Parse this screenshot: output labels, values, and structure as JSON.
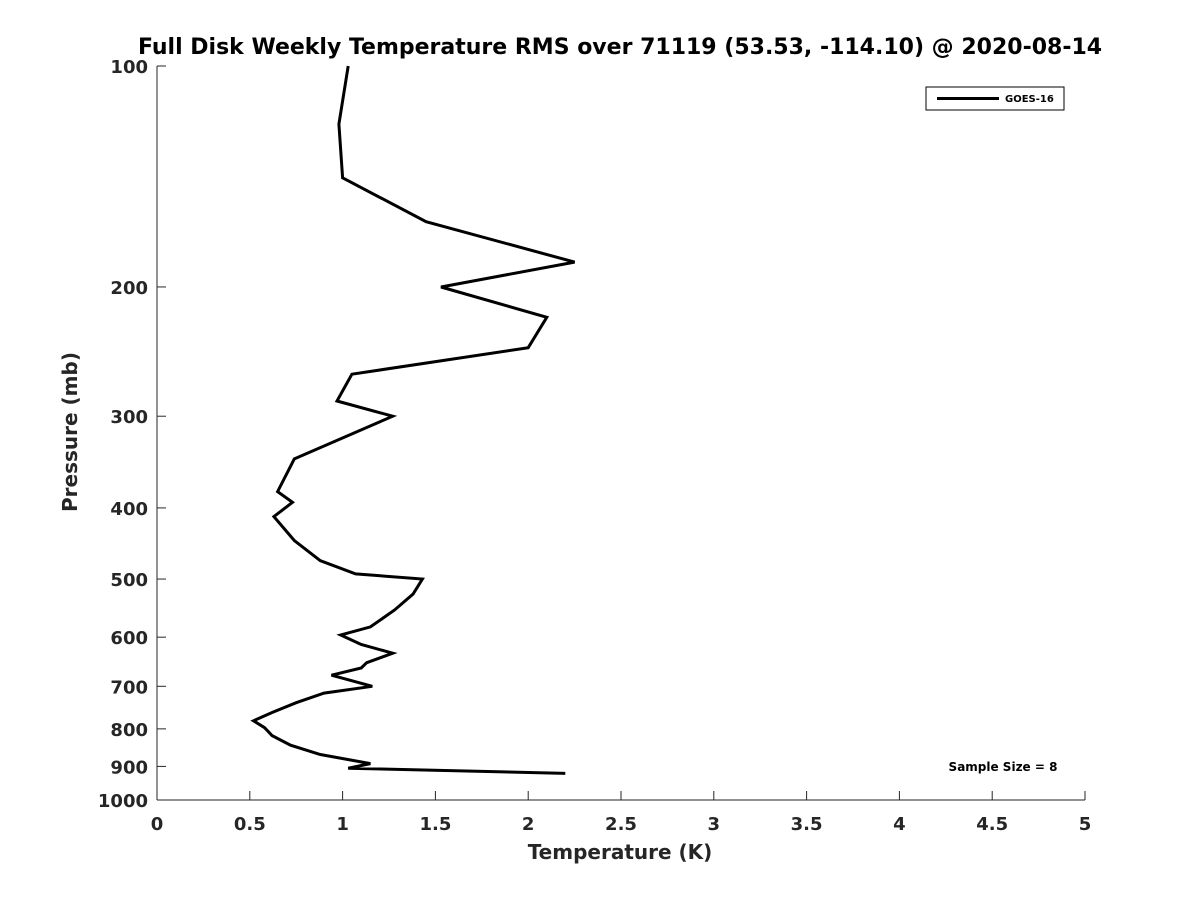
{
  "chart_data": {
    "type": "line",
    "title": "Full Disk Weekly Temperature RMS over 71119 (53.53, -114.10) @ 2020-08-14",
    "xlabel": "Temperature (K)",
    "ylabel": "Pressure (mb)",
    "xlim": [
      0,
      5
    ],
    "ylim": [
      100,
      1000
    ],
    "y_scale": "log",
    "y_reversed": true,
    "x_ticks": [
      "0",
      "0.5",
      "1",
      "1.5",
      "2",
      "2.5",
      "3",
      "3.5",
      "4",
      "4.5",
      "5"
    ],
    "y_ticks": [
      "100",
      "200",
      "300",
      "400",
      "500",
      "600",
      "700",
      "800",
      "900",
      "1000"
    ],
    "grid": false,
    "legend_position": "top-right",
    "series": [
      {
        "name": "GOES-16",
        "color": "#000000",
        "points": [
          [
            1.03,
            100
          ],
          [
            0.98,
            120
          ],
          [
            1.0,
            142
          ],
          [
            1.45,
            163
          ],
          [
            2.25,
            185
          ],
          [
            1.53,
            200
          ],
          [
            2.1,
            220
          ],
          [
            2.0,
            242
          ],
          [
            1.05,
            263
          ],
          [
            0.97,
            286
          ],
          [
            1.27,
            300
          ],
          [
            0.74,
            343
          ],
          [
            0.65,
            380
          ],
          [
            0.73,
            393
          ],
          [
            0.63,
            411
          ],
          [
            0.74,
            443
          ],
          [
            0.88,
            472
          ],
          [
            1.07,
            492
          ],
          [
            1.43,
            500
          ],
          [
            1.38,
            524
          ],
          [
            1.28,
            551
          ],
          [
            1.15,
            581
          ],
          [
            0.99,
            596
          ],
          [
            1.1,
            614
          ],
          [
            1.27,
            631
          ],
          [
            1.13,
            650
          ],
          [
            1.1,
            661
          ],
          [
            0.94,
            676
          ],
          [
            1.16,
            700
          ],
          [
            0.9,
            715
          ],
          [
            0.75,
            737
          ],
          [
            0.62,
            760
          ],
          [
            0.52,
            780
          ],
          [
            0.58,
            797
          ],
          [
            0.62,
            817
          ],
          [
            0.72,
            842
          ],
          [
            0.88,
            867
          ],
          [
            1.15,
            892
          ],
          [
            1.03,
            905
          ],
          [
            2.2,
            920
          ]
        ]
      }
    ],
    "annotation": "Sample Size = 8"
  }
}
